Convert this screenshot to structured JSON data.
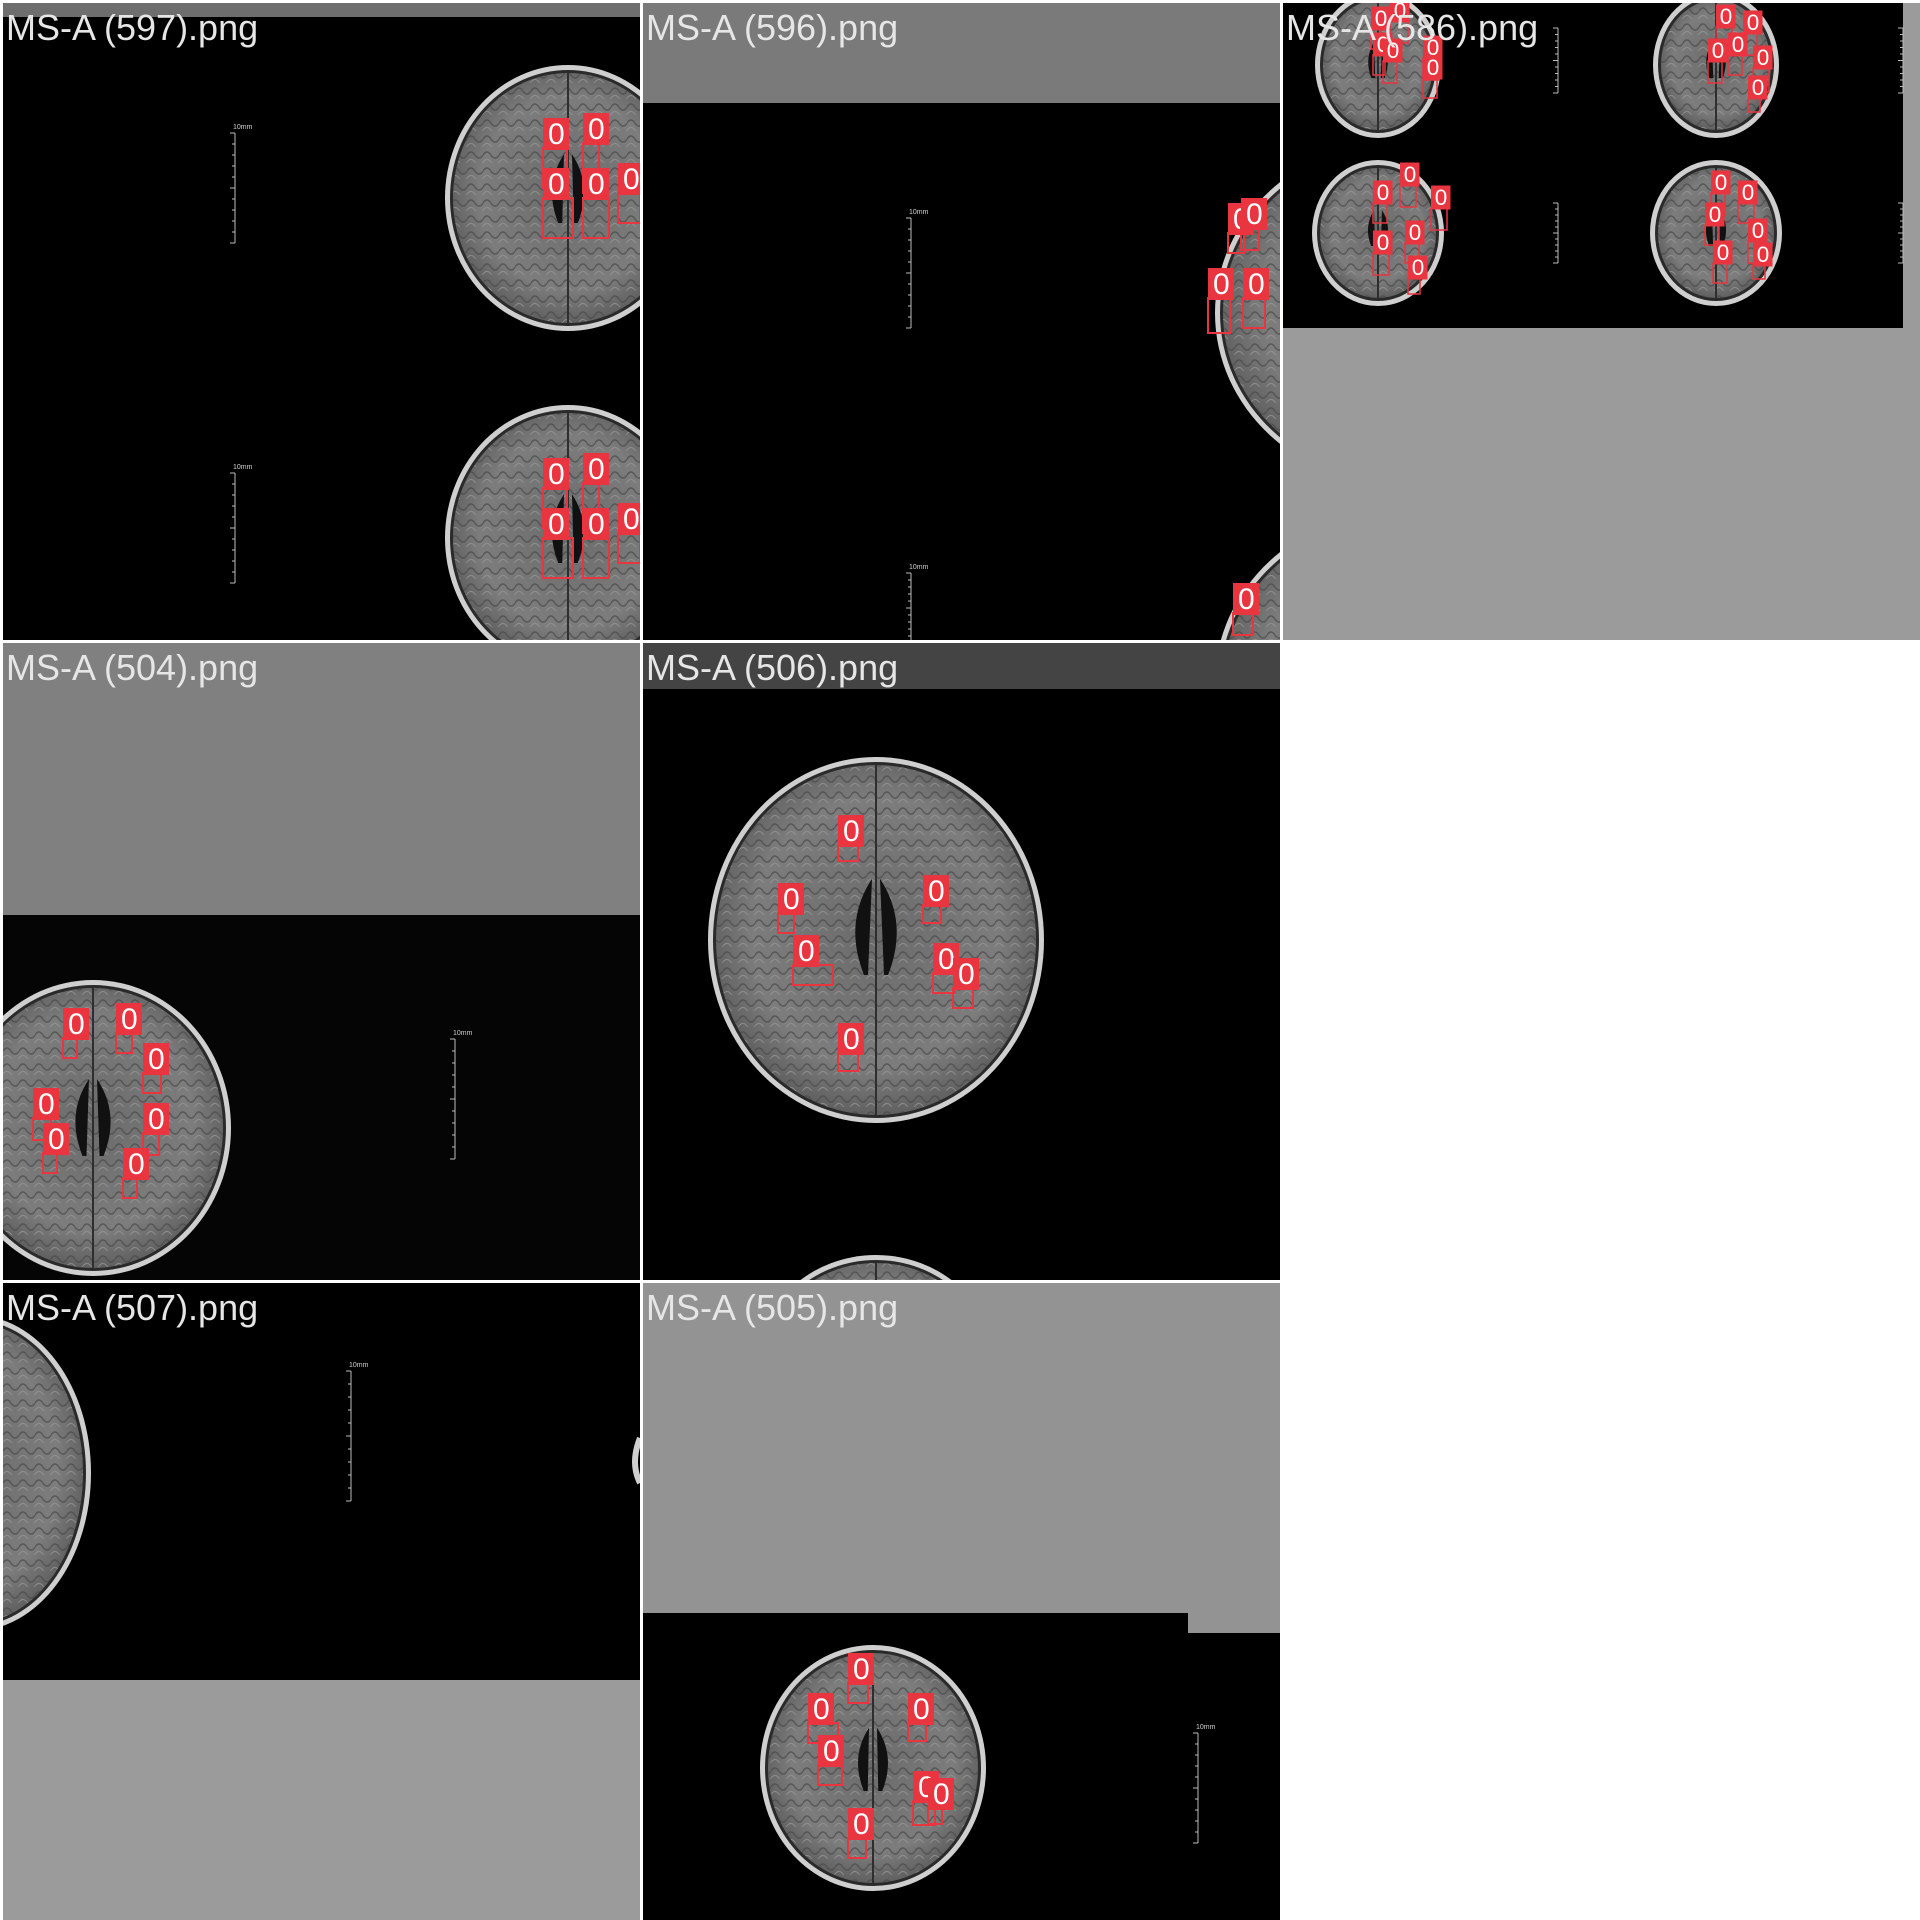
{
  "colors": {
    "detection_box": "#e8353f",
    "detection_label_text": "#ffffff",
    "tile_label_text": "#e6e6e6",
    "scan_background": "#000000",
    "scale_bar": "#bdbdbd"
  },
  "tiles": [
    {
      "id": "597",
      "filename": "MS-A (597).png",
      "band_color": "#6e6e6e",
      "fill_color": "#000000",
      "detections": [
        {
          "label": "0"
        },
        {
          "label": "0"
        },
        {
          "label": "0"
        },
        {
          "label": "0"
        },
        {
          "label": "0"
        },
        {
          "label": "0"
        },
        {
          "label": "0"
        },
        {
          "label": "0"
        },
        {
          "label": "0"
        },
        {
          "label": "0"
        }
      ],
      "scale_labels": [
        "10mm",
        "10mm"
      ]
    },
    {
      "id": "596",
      "filename": "MS-A (596).png",
      "band_color": "#7a7a7a",
      "fill_color": "#000000",
      "detections": [
        {
          "label": "0"
        },
        {
          "label": "0"
        },
        {
          "label": "0"
        },
        {
          "label": "0"
        },
        {
          "label": "0"
        }
      ],
      "scale_labels": [
        "10mm",
        "10mm"
      ]
    },
    {
      "id": "586",
      "filename": "MS-A (586).png",
      "band_color": "#9b9b9b",
      "fill_color": "#9b9b9b",
      "detections": [
        {
          "label": "0"
        },
        {
          "label": "0"
        },
        {
          "label": "0"
        },
        {
          "label": "0"
        },
        {
          "label": "0"
        },
        {
          "label": "0"
        },
        {
          "label": "0"
        },
        {
          "label": "0"
        },
        {
          "label": "0"
        },
        {
          "label": "0"
        },
        {
          "label": "0"
        },
        {
          "label": "0"
        },
        {
          "label": "0"
        },
        {
          "label": "0"
        },
        {
          "label": "0"
        },
        {
          "label": "0"
        },
        {
          "label": "0"
        },
        {
          "label": "0"
        },
        {
          "label": "0"
        },
        {
          "label": "0"
        },
        {
          "label": "0"
        },
        {
          "label": "0"
        },
        {
          "label": "0"
        },
        {
          "label": "0"
        }
      ]
    },
    {
      "id": "504",
      "filename": "MS-A (504).png",
      "band_color": "#808080",
      "fill_color": "#000000",
      "detections": [
        {
          "label": "0"
        },
        {
          "label": "0"
        },
        {
          "label": "0"
        },
        {
          "label": "0"
        },
        {
          "label": "0"
        },
        {
          "label": "0"
        },
        {
          "label": "0"
        }
      ],
      "scale_labels": [
        "10mm"
      ]
    },
    {
      "id": "506",
      "filename": "MS-A (506).png",
      "band_color": "#444444",
      "fill_color": "#000000",
      "detections": [
        {
          "label": "0"
        },
        {
          "label": "0"
        },
        {
          "label": "0"
        },
        {
          "label": "0"
        },
        {
          "label": "0"
        },
        {
          "label": "0"
        },
        {
          "label": "0"
        }
      ]
    },
    {
      "id": "507",
      "filename": "MS-A (507).png",
      "band_color": "#000000",
      "fill_color": "#9b9b9b",
      "detections": [],
      "scale_labels": [
        "10mm"
      ]
    },
    {
      "id": "505",
      "filename": "MS-A (505).png",
      "band_color": "#939393",
      "fill_color": "#000000",
      "detections": [
        {
          "label": "0"
        },
        {
          "label": "0"
        },
        {
          "label": "0"
        },
        {
          "label": "0"
        },
        {
          "label": "0"
        },
        {
          "label": "0"
        },
        {
          "label": "0"
        }
      ],
      "scale_labels": [
        "10mm"
      ]
    }
  ]
}
